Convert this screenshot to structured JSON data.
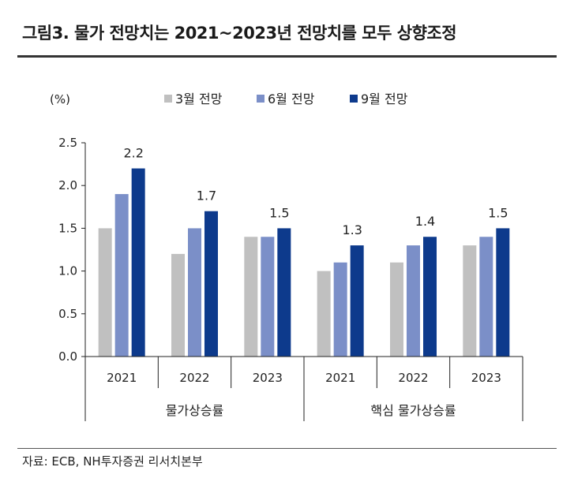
{
  "figure": {
    "title": "그림3. 물가 전망치는 2021~2023년 전망치를 모두 상향조정",
    "source": "자료: ECB, NH투자증권 리서치본부"
  },
  "chart_data": {
    "type": "bar",
    "unit_label": "(%)",
    "ylim": [
      0,
      2.5
    ],
    "yticks": [
      "0.0",
      "0.5",
      "1.0",
      "1.5",
      "2.0",
      "2.5"
    ],
    "legend_position": "top",
    "groups": [
      {
        "label": "물가상승률",
        "categories": [
          "2021",
          "2022",
          "2023"
        ]
      },
      {
        "label": "핵심 물가상승률",
        "categories": [
          "2021",
          "2022",
          "2023"
        ]
      }
    ],
    "categories": [
      "2021",
      "2022",
      "2023",
      "2021",
      "2022",
      "2023"
    ],
    "series": [
      {
        "name": "3월 전망",
        "color": "#c0c0c0",
        "values": [
          1.5,
          1.2,
          1.4,
          1.0,
          1.1,
          1.3
        ]
      },
      {
        "name": "6월 전망",
        "color": "#7b8fc8",
        "values": [
          1.9,
          1.5,
          1.4,
          1.1,
          1.3,
          1.4
        ]
      },
      {
        "name": "9월 전망",
        "color": "#0d3a8c",
        "values": [
          2.2,
          1.7,
          1.5,
          1.3,
          1.4,
          1.5
        ]
      }
    ],
    "data_labels": [
      "2.2",
      "1.7",
      "1.5",
      "1.3",
      "1.4",
      "1.5"
    ]
  }
}
